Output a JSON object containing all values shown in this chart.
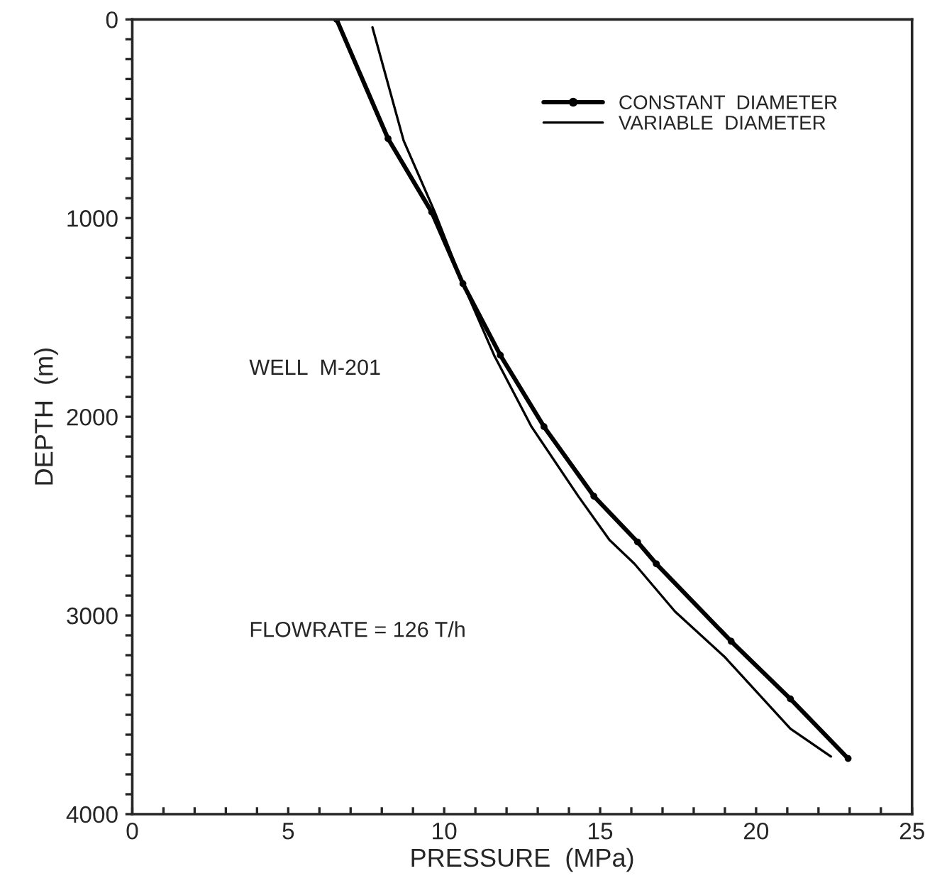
{
  "chart_data": {
    "type": "line",
    "xlabel": "PRESSURE  (MPa)",
    "ylabel": "DEPTH  (m)",
    "xlim": [
      0,
      25
    ],
    "ylim": [
      4000,
      0
    ],
    "xticks": [
      0,
      {
        "value": 1,
        "label": null
      },
      {
        "value": 2,
        "label": null
      },
      {
        "value": 3,
        "label": null
      },
      {
        "value": 4,
        "label": null
      },
      5,
      {
        "value": 6,
        "label": null
      },
      {
        "value": 7,
        "label": null
      },
      {
        "value": 8,
        "label": null
      },
      {
        "value": 9,
        "label": null
      },
      10,
      {
        "value": 11,
        "label": null
      },
      {
        "value": 12,
        "label": null
      },
      {
        "value": 13,
        "label": null
      },
      {
        "value": 14,
        "label": null
      },
      15,
      {
        "value": 16,
        "label": null
      },
      {
        "value": 17,
        "label": null
      },
      {
        "value": 18,
        "label": null
      },
      {
        "value": 19,
        "label": null
      },
      20,
      {
        "value": 21,
        "label": null
      },
      {
        "value": 22,
        "label": null
      },
      {
        "value": 23,
        "label": null
      },
      {
        "value": 24,
        "label": null
      },
      25
    ],
    "yticks": [
      0,
      {
        "value": 100,
        "label": null
      },
      {
        "value": 200,
        "label": null
      },
      {
        "value": 300,
        "label": null
      },
      {
        "value": 400,
        "label": null
      },
      {
        "value": 500,
        "label": null
      },
      {
        "value": 600,
        "label": null
      },
      {
        "value": 700,
        "label": null
      },
      {
        "value": 800,
        "label": null
      },
      {
        "value": 900,
        "label": null
      },
      1000,
      {
        "value": 1100,
        "label": null
      },
      {
        "value": 1200,
        "label": null
      },
      {
        "value": 1300,
        "label": null
      },
      {
        "value": 1400,
        "label": null
      },
      {
        "value": 1500,
        "label": null
      },
      {
        "value": 1600,
        "label": null
      },
      {
        "value": 1700,
        "label": null
      },
      {
        "value": 1800,
        "label": null
      },
      {
        "value": 1900,
        "label": null
      },
      2000,
      {
        "value": 2100,
        "label": null
      },
      {
        "value": 2200,
        "label": null
      },
      {
        "value": 2300,
        "label": null
      },
      {
        "value": 2400,
        "label": null
      },
      {
        "value": 2500,
        "label": null
      },
      {
        "value": 2600,
        "label": null
      },
      {
        "value": 2700,
        "label": null
      },
      {
        "value": 2800,
        "label": null
      },
      {
        "value": 2900,
        "label": null
      },
      3000,
      {
        "value": 3100,
        "label": null
      },
      {
        "value": 3200,
        "label": null
      },
      {
        "value": 3300,
        "label": null
      },
      {
        "value": 3400,
        "label": null
      },
      {
        "value": 3500,
        "label": null
      },
      {
        "value": 3600,
        "label": null
      },
      {
        "value": 3700,
        "label": null
      },
      {
        "value": 3800,
        "label": null
      },
      {
        "value": 3900,
        "label": null
      },
      4000
    ],
    "grid": false,
    "legend": "top right",
    "annotations": [
      "WELL  M-201",
      "FLOWRATE = 126 T/h"
    ],
    "series": [
      {
        "name": "CONSTANT  DIAMETER",
        "color": "#000000",
        "marker": "circle",
        "x": [
          6.55,
          8.2,
          9.6,
          10.6,
          11.8,
          13.2,
          14.8,
          16.2,
          16.8,
          19.2,
          21.1,
          22.95
        ],
        "values": [
          0,
          600,
          970,
          1330,
          1690,
          2050,
          2400,
          2630,
          2740,
          3130,
          3420,
          3720
        ]
      },
      {
        "name": "VARIABLE  DIAMETER",
        "color": "#000000",
        "marker": "none",
        "x": [
          7.7,
          8.7,
          9.7,
          10.6,
          11.6,
          12.8,
          14.3,
          15.3,
          16.1,
          17.4,
          19.0,
          21.1,
          22.4
        ],
        "values": [
          40,
          610,
          970,
          1330,
          1690,
          2050,
          2400,
          2620,
          2740,
          2980,
          3210,
          3570,
          3710
        ]
      }
    ]
  }
}
